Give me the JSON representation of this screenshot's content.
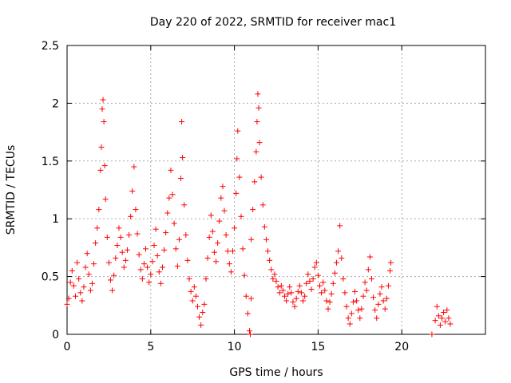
{
  "chart_data": {
    "type": "scatter",
    "title": "Day 220 of 2022, SRMTID for receiver mac1",
    "xlabel": "GPS time / hours",
    "ylabel": "SRMTID / TECUs",
    "xlim": [
      0,
      25
    ],
    "ylim": [
      0,
      2.5
    ],
    "xticks": [
      0,
      5,
      10,
      15,
      20
    ],
    "yticks": [
      0,
      0.5,
      1,
      1.5,
      2,
      2.5
    ],
    "xtick_labels": [
      "0",
      "5",
      "10",
      "15",
      "20"
    ],
    "ytick_labels": [
      "0",
      "0.5",
      "1",
      "1.5",
      "2",
      "2.5"
    ],
    "grid": true,
    "series": [
      {
        "name": "SRMTID",
        "marker": "plus",
        "color": "#ff0000",
        "points": [
          [
            0.0,
            0.26
          ],
          [
            0.1,
            0.31
          ],
          [
            0.2,
            0.45
          ],
          [
            0.3,
            0.55
          ],
          [
            0.4,
            0.42
          ],
          [
            0.5,
            0.33
          ],
          [
            0.6,
            0.62
          ],
          [
            0.7,
            0.48
          ],
          [
            0.8,
            0.36
          ],
          [
            0.9,
            0.29
          ],
          [
            1.0,
            0.41
          ],
          [
            1.1,
            0.58
          ],
          [
            1.2,
            0.7
          ],
          [
            1.3,
            0.52
          ],
          [
            1.4,
            0.38
          ],
          [
            1.5,
            0.44
          ],
          [
            1.6,
            0.61
          ],
          [
            1.7,
            0.79
          ],
          [
            1.8,
            0.92
          ],
          [
            1.9,
            1.08
          ],
          [
            2.0,
            1.42
          ],
          [
            2.05,
            1.62
          ],
          [
            2.1,
            1.95
          ],
          [
            2.15,
            2.03
          ],
          [
            2.2,
            1.84
          ],
          [
            2.25,
            1.46
          ],
          [
            2.3,
            1.17
          ],
          [
            2.4,
            0.84
          ],
          [
            2.5,
            0.62
          ],
          [
            2.6,
            0.47
          ],
          [
            2.7,
            0.38
          ],
          [
            2.8,
            0.51
          ],
          [
            2.9,
            0.66
          ],
          [
            3.0,
            0.77
          ],
          [
            3.1,
            0.92
          ],
          [
            3.2,
            0.84
          ],
          [
            3.3,
            0.71
          ],
          [
            3.4,
            0.58
          ],
          [
            3.5,
            0.64
          ],
          [
            3.6,
            0.73
          ],
          [
            3.7,
            0.86
          ],
          [
            3.8,
            1.02
          ],
          [
            3.9,
            1.24
          ],
          [
            4.0,
            1.45
          ],
          [
            4.1,
            1.08
          ],
          [
            4.2,
            0.87
          ],
          [
            4.3,
            0.69
          ],
          [
            4.4,
            0.56
          ],
          [
            4.5,
            0.48
          ],
          [
            4.6,
            0.61
          ],
          [
            4.7,
            0.74
          ],
          [
            4.8,
            0.58
          ],
          [
            4.9,
            0.45
          ],
          [
            5.0,
            0.52
          ],
          [
            5.1,
            0.63
          ],
          [
            5.2,
            0.77
          ],
          [
            5.3,
            0.91
          ],
          [
            5.4,
            0.68
          ],
          [
            5.5,
            0.54
          ],
          [
            5.6,
            0.44
          ],
          [
            5.7,
            0.58
          ],
          [
            5.8,
            0.73
          ],
          [
            5.9,
            0.88
          ],
          [
            6.0,
            1.05
          ],
          [
            6.1,
            1.18
          ],
          [
            6.2,
            1.42
          ],
          [
            6.3,
            1.21
          ],
          [
            6.4,
            0.96
          ],
          [
            6.5,
            0.74
          ],
          [
            6.6,
            0.59
          ],
          [
            6.7,
            0.82
          ],
          [
            6.8,
            1.35
          ],
          [
            6.85,
            1.84
          ],
          [
            6.9,
            1.53
          ],
          [
            7.0,
            1.12
          ],
          [
            7.1,
            0.86
          ],
          [
            7.2,
            0.64
          ],
          [
            7.3,
            0.48
          ],
          [
            7.4,
            0.37
          ],
          [
            7.5,
            0.29
          ],
          [
            7.6,
            0.41
          ],
          [
            7.7,
            0.33
          ],
          [
            7.8,
            0.24
          ],
          [
            7.9,
            0.15
          ],
          [
            8.0,
            0.08
          ],
          [
            8.1,
            0.19
          ],
          [
            8.2,
            0.26
          ],
          [
            8.3,
            0.48
          ],
          [
            8.4,
            0.66
          ],
          [
            8.5,
            0.84
          ],
          [
            8.6,
            1.03
          ],
          [
            8.7,
            0.89
          ],
          [
            8.8,
            0.71
          ],
          [
            8.9,
            0.63
          ],
          [
            9.0,
            0.79
          ],
          [
            9.1,
            0.98
          ],
          [
            9.2,
            1.18
          ],
          [
            9.3,
            1.28
          ],
          [
            9.4,
            1.07
          ],
          [
            9.5,
            0.86
          ],
          [
            9.6,
            0.72
          ],
          [
            9.7,
            0.61
          ],
          [
            9.8,
            0.54
          ],
          [
            9.9,
            0.72
          ],
          [
            10.0,
            0.92
          ],
          [
            10.1,
            1.22
          ],
          [
            10.15,
            1.52
          ],
          [
            10.2,
            1.76
          ],
          [
            10.3,
            1.36
          ],
          [
            10.4,
            1.02
          ],
          [
            10.5,
            0.74
          ],
          [
            10.6,
            0.51
          ],
          [
            10.7,
            0.33
          ],
          [
            10.8,
            0.18
          ],
          [
            10.9,
            0.03
          ],
          [
            11.0,
            0.82
          ],
          [
            11.1,
            1.08
          ],
          [
            11.2,
            1.32
          ],
          [
            11.3,
            1.58
          ],
          [
            11.35,
            1.84
          ],
          [
            11.4,
            2.08
          ],
          [
            11.45,
            1.96
          ],
          [
            11.5,
            1.66
          ],
          [
            11.6,
            1.36
          ],
          [
            11.7,
            1.12
          ],
          [
            11.8,
            0.93
          ],
          [
            11.9,
            0.82
          ],
          [
            12.0,
            0.72
          ],
          [
            12.1,
            0.64
          ],
          [
            12.2,
            0.56
          ],
          [
            12.3,
            0.48
          ],
          [
            12.4,
            0.52
          ],
          [
            12.5,
            0.46
          ],
          [
            12.6,
            0.41
          ],
          [
            12.7,
            0.36
          ],
          [
            12.8,
            0.42
          ],
          [
            12.9,
            0.38
          ],
          [
            13.0,
            0.33
          ],
          [
            13.1,
            0.29
          ],
          [
            13.2,
            0.35
          ],
          [
            13.3,
            0.41
          ],
          [
            13.4,
            0.36
          ],
          [
            13.5,
            0.28
          ],
          [
            13.6,
            0.24
          ],
          [
            13.7,
            0.31
          ],
          [
            13.8,
            0.37
          ],
          [
            13.9,
            0.42
          ],
          [
            14.0,
            0.36
          ],
          [
            14.1,
            0.29
          ],
          [
            14.2,
            0.33
          ],
          [
            14.3,
            0.44
          ],
          [
            14.4,
            0.52
          ],
          [
            14.5,
            0.46
          ],
          [
            14.6,
            0.39
          ],
          [
            14.7,
            0.48
          ],
          [
            14.8,
            0.58
          ],
          [
            14.9,
            0.62
          ],
          [
            15.0,
            0.51
          ],
          [
            15.1,
            0.42
          ],
          [
            15.2,
            0.36
          ],
          [
            15.3,
            0.45
          ],
          [
            15.4,
            0.38
          ],
          [
            15.5,
            0.29
          ],
          [
            15.6,
            0.22
          ],
          [
            15.7,
            0.28
          ],
          [
            15.8,
            0.35
          ],
          [
            15.9,
            0.44
          ],
          [
            16.0,
            0.53
          ],
          [
            16.1,
            0.62
          ],
          [
            16.2,
            0.72
          ],
          [
            16.3,
            0.94
          ],
          [
            16.4,
            0.66
          ],
          [
            16.5,
            0.48
          ],
          [
            16.6,
            0.36
          ],
          [
            16.7,
            0.24
          ],
          [
            16.8,
            0.14
          ],
          [
            16.9,
            0.09
          ],
          [
            17.0,
            0.18
          ],
          [
            17.1,
            0.28
          ],
          [
            17.2,
            0.37
          ],
          [
            17.3,
            0.29
          ],
          [
            17.4,
            0.21
          ],
          [
            17.5,
            0.14
          ],
          [
            17.6,
            0.22
          ],
          [
            17.7,
            0.33
          ],
          [
            17.8,
            0.45
          ],
          [
            17.9,
            0.38
          ],
          [
            18.0,
            0.56
          ],
          [
            18.1,
            0.67
          ],
          [
            18.2,
            0.48
          ],
          [
            18.3,
            0.32
          ],
          [
            18.4,
            0.21
          ],
          [
            18.5,
            0.14
          ],
          [
            18.6,
            0.26
          ],
          [
            18.7,
            0.35
          ],
          [
            18.8,
            0.41
          ],
          [
            18.9,
            0.29
          ],
          [
            19.0,
            0.22
          ],
          [
            19.1,
            0.31
          ],
          [
            19.2,
            0.42
          ],
          [
            19.3,
            0.55
          ],
          [
            19.35,
            0.62
          ],
          [
            21.8,
            0.0
          ],
          [
            22.0,
            0.12
          ],
          [
            22.1,
            0.24
          ],
          [
            22.2,
            0.16
          ],
          [
            22.3,
            0.08
          ],
          [
            22.4,
            0.14
          ],
          [
            22.5,
            0.19
          ],
          [
            22.6,
            0.11
          ],
          [
            22.7,
            0.21
          ],
          [
            22.8,
            0.14
          ],
          [
            22.9,
            0.09
          ],
          [
            10.95,
            0.0
          ],
          [
            11.0,
            0.31
          ]
        ]
      }
    ]
  }
}
